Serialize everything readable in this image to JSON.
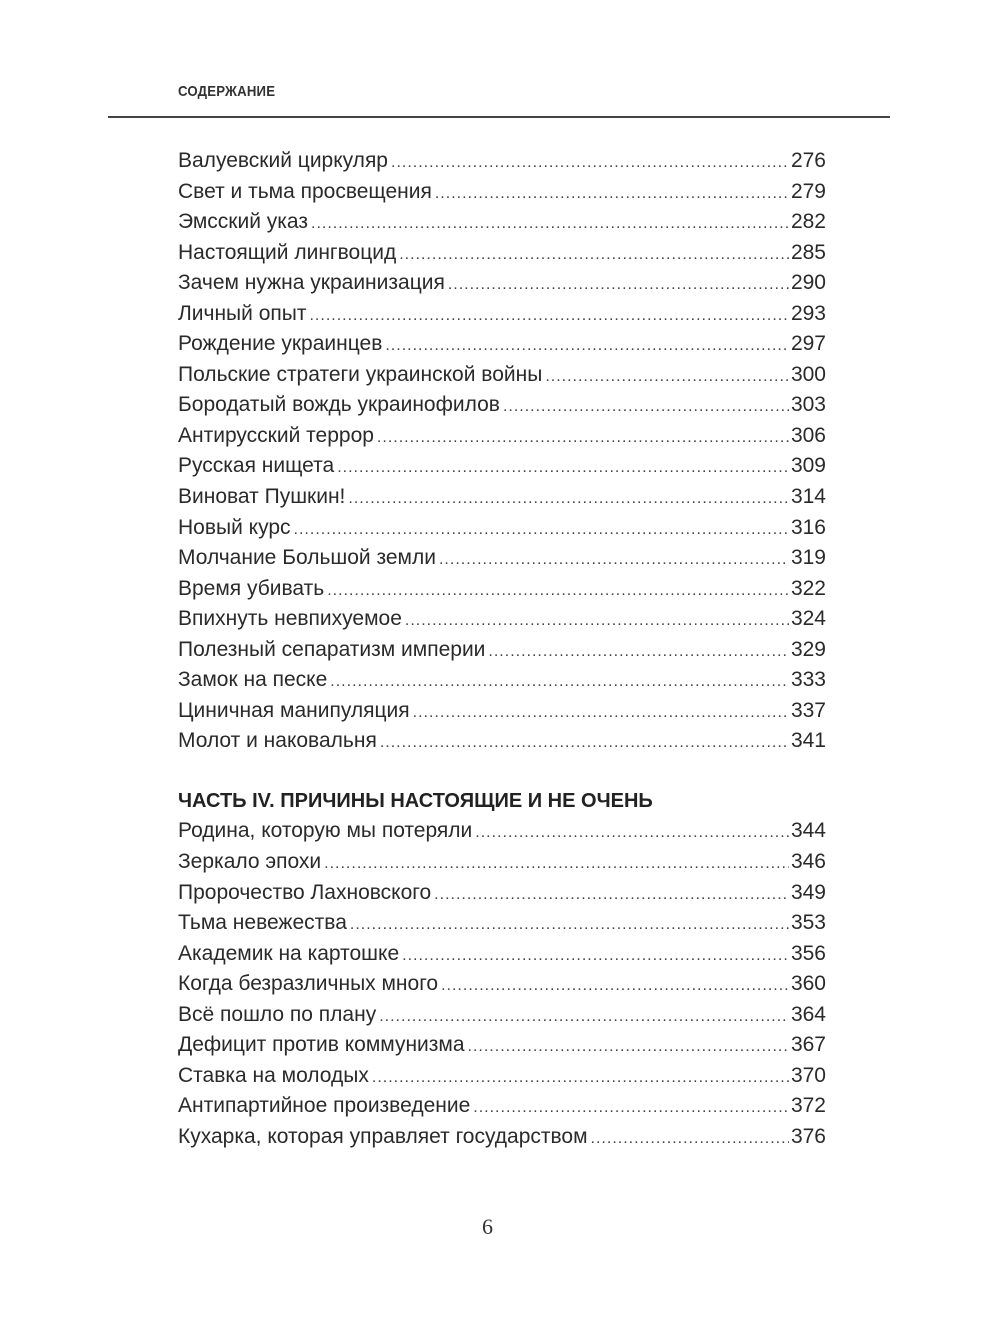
{
  "header": {
    "running_head": "СОДЕРЖАНИЕ"
  },
  "section1": {
    "entries": [
      {
        "title": "Валуевский циркуляр",
        "page": "276"
      },
      {
        "title": "Свет и тьма просвещения",
        "page": "279"
      },
      {
        "title": "Эмсский указ",
        "page": "282"
      },
      {
        "title": "Настоящий лингвоцид",
        "page": "285"
      },
      {
        "title": "Зачем нужна украинизация",
        "page": "290"
      },
      {
        "title": "Личный опыт",
        "page": "293"
      },
      {
        "title": "Рождение украинцев",
        "page": "297"
      },
      {
        "title": "Польские стратеги украинской войны",
        "page": "300"
      },
      {
        "title": "Бородатый вождь украинофилов",
        "page": "303"
      },
      {
        "title": "Антирусский террор",
        "page": "306"
      },
      {
        "title": "Русская нищета",
        "page": "309"
      },
      {
        "title": "Виноват Пушкин!",
        "page": "314"
      },
      {
        "title": "Новый курс",
        "page": "316"
      },
      {
        "title": "Молчание Большой земли",
        "page": "319"
      },
      {
        "title": "Время убивать",
        "page": "322"
      },
      {
        "title": "Впихнуть невпихуемое",
        "page": "324"
      },
      {
        "title": "Полезный сепаратизм империи",
        "page": "329"
      },
      {
        "title": "Замок на песке",
        "page": "333"
      },
      {
        "title": "Циничная манипуляция",
        "page": "337"
      },
      {
        "title": "Молот и наковальня",
        "page": "341"
      }
    ]
  },
  "section2": {
    "heading": "ЧАСТЬ IV. ПРИЧИНЫ НАСТОЯЩИЕ И НЕ ОЧЕНЬ",
    "entries": [
      {
        "title": "Родина, которую мы потеряли",
        "page": "344"
      },
      {
        "title": "Зеркало эпохи",
        "page": "346"
      },
      {
        "title": "Пророчество Лахновского",
        "page": "349"
      },
      {
        "title": "Тьма невежества",
        "page": "353"
      },
      {
        "title": "Академик на картошке",
        "page": "356"
      },
      {
        "title": "Когда безразличных много",
        "page": "360"
      },
      {
        "title": "Всё пошло по плану",
        "page": "364"
      },
      {
        "title": "Дефицит против коммунизма",
        "page": "367"
      },
      {
        "title": "Ставка на молодых",
        "page": "370"
      },
      {
        "title": "Антипартийное произведение",
        "page": "372"
      },
      {
        "title": "Кухарка, которая управляет государством",
        "page": "376"
      }
    ]
  },
  "footer": {
    "page_number": "6"
  }
}
